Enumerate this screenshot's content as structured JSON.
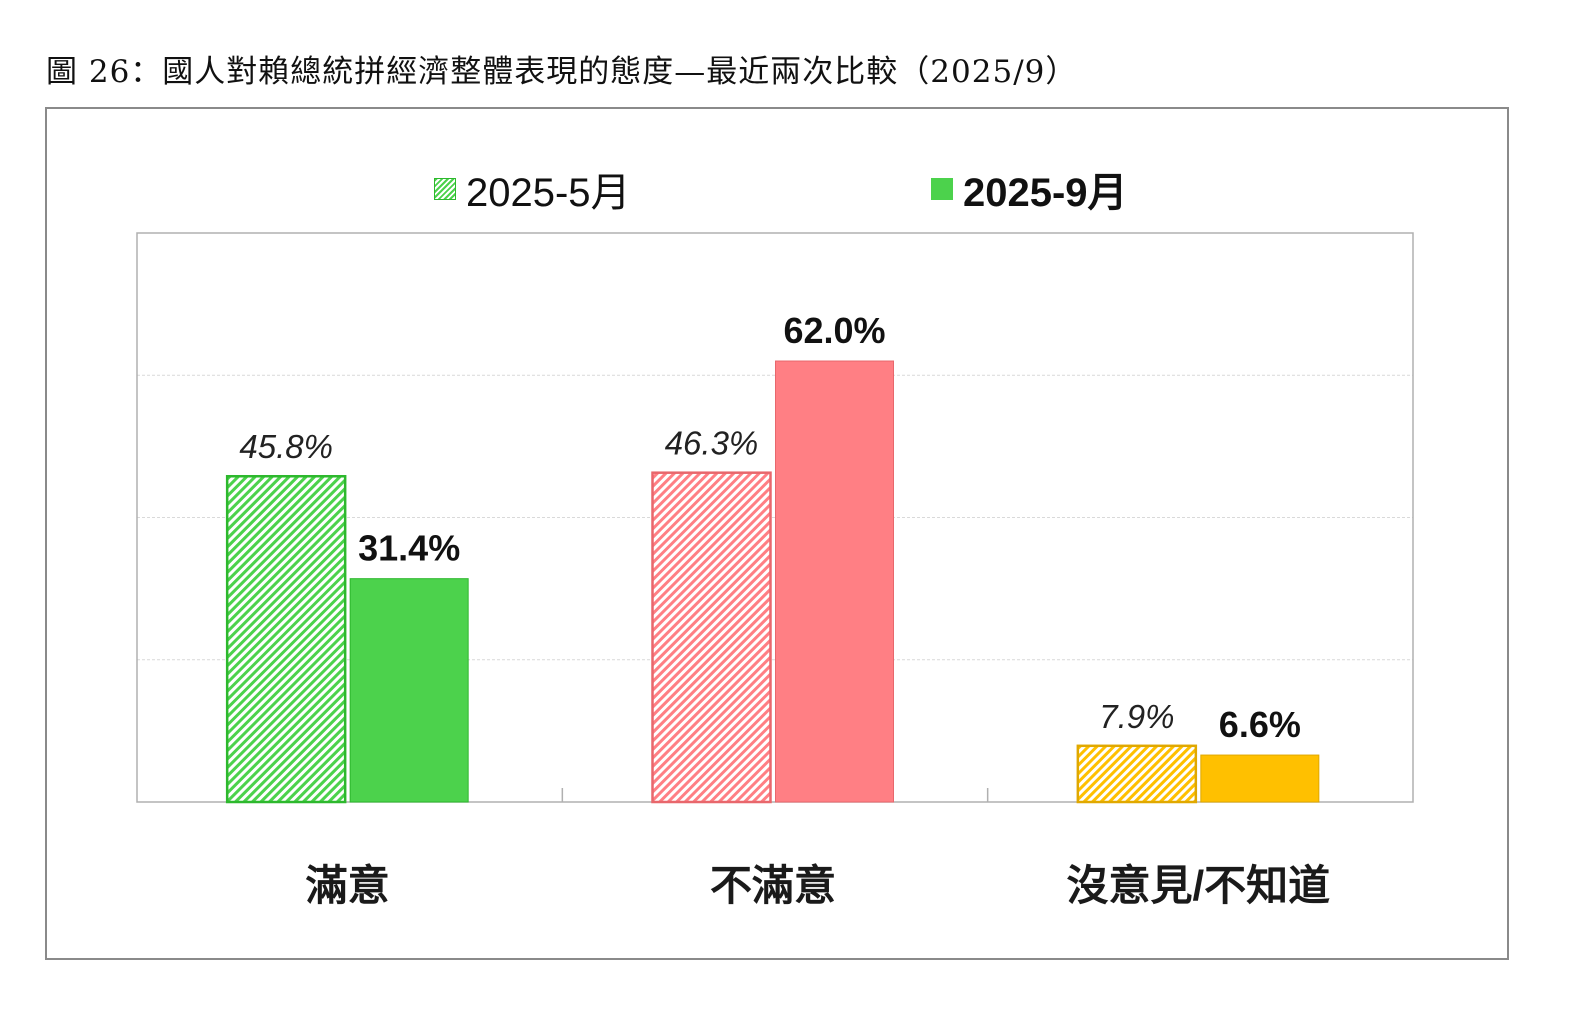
{
  "figure_title": "圖 26：國人對賴總統拼經濟整體表現的態度—最近兩次比較（2025/9）",
  "legend": [
    {
      "label": "2025-5月"
    },
    {
      "label": "2025-9月"
    }
  ],
  "colors": {
    "satisfied": "#4cd24c",
    "dissatisfied": "#ff7f84",
    "no_opinion": "#ffc000",
    "border_satisfied": "#2db82d",
    "border_dissatisfied": "#e8676c",
    "border_no_opinion": "#e0a800"
  },
  "chart_data": {
    "type": "bar",
    "title": "",
    "categories": [
      "滿意",
      "不滿意",
      "沒意見/不知道"
    ],
    "series": [
      {
        "name": "2025-5月",
        "pattern": "hatched",
        "values": [
          45.8,
          46.3,
          7.9
        ],
        "labels": [
          "45.8%",
          "46.3%",
          "7.9%"
        ]
      },
      {
        "name": "2025-9月",
        "pattern": "solid",
        "values": [
          31.4,
          62.0,
          6.6
        ],
        "labels": [
          "31.4%",
          "62.0%",
          "6.6%"
        ]
      }
    ],
    "ylim": [
      0,
      80
    ],
    "grid": true,
    "legend_position": "top-center",
    "xlabel": "",
    "ylabel": ""
  }
}
